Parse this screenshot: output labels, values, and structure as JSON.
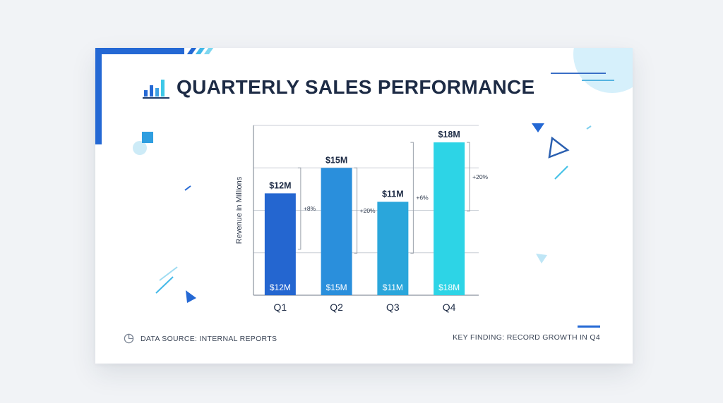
{
  "title": "QUARTERLY SALES PERFORMANCE",
  "footer": {
    "source": "DATA SOURCE: INTERNAL REPORTS",
    "finding": "KEY FINDING: RECORD GROWTH IN Q4"
  },
  "colors": {
    "accent": "#2468d4",
    "bars": [
      "#2466d0",
      "#2a8fdc",
      "#2aa6db",
      "#2dd4e6"
    ],
    "title": "#1d2b45"
  },
  "icons": {
    "title": "bar-chart-icon",
    "source": "pie-chart-icon"
  },
  "chart_data": {
    "type": "bar",
    "categories": [
      "Q1",
      "Q2",
      "Q3",
      "Q4"
    ],
    "values": [
      12,
      15,
      11,
      18
    ],
    "top_labels": [
      "$12M",
      "$15M",
      "$11M",
      "$18M"
    ],
    "inside_labels": [
      "$12M",
      "$15M",
      "$11M",
      "$18M"
    ],
    "ylabel": "Revenue in Millions",
    "xlabel": "",
    "ylim": [
      0,
      20
    ],
    "grid": true,
    "annotations": [
      {
        "text": "+8%",
        "between": [
          "Q1",
          "Q2"
        ]
      },
      {
        "text": "+20%",
        "between": [
          "Q2",
          "Q3"
        ]
      },
      {
        "text": "+6%",
        "between": [
          "Q3",
          "Q4"
        ]
      },
      {
        "text": "+20%",
        "between": [
          "Q4",
          "end"
        ]
      }
    ]
  }
}
